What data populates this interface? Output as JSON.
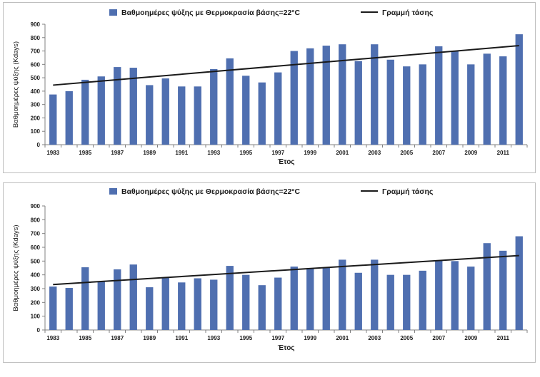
{
  "chart_data": [
    {
      "type": "bar+line",
      "legend": {
        "bar_label": "Βαθμοημέρες ψύξης με Θερμοκρασία βάσης=22°C",
        "line_label": "Γραμμή τάσης",
        "placement": "top"
      },
      "xlabel": "Έτος",
      "ylabel": "Βαθμοημέρες ψύξης (Kdays)",
      "ylim": [
        0,
        900
      ],
      "ytick_step": 100,
      "grid": false,
      "colors": {
        "bar": "#4f6fb0",
        "line": "#1a1a1a"
      },
      "categories": [
        1983,
        1984,
        1985,
        1986,
        1987,
        1988,
        1989,
        1990,
        1991,
        1992,
        1993,
        1994,
        1995,
        1996,
        1997,
        1998,
        1999,
        2000,
        2001,
        2002,
        2003,
        2004,
        2005,
        2006,
        2007,
        2008,
        2009,
        2010,
        2011,
        2012
      ],
      "tick_labels": [
        "1983",
        "1985",
        "1987",
        "1989",
        "1991",
        "1993",
        "1995",
        "1997",
        "1999",
        "2001",
        "2003",
        "2005",
        "2007",
        "2009",
        "2011"
      ],
      "values": [
        375,
        400,
        485,
        510,
        580,
        575,
        445,
        495,
        435,
        435,
        565,
        645,
        515,
        465,
        540,
        700,
        720,
        740,
        750,
        625,
        750,
        635,
        585,
        600,
        735,
        700,
        600,
        680,
        660,
        825
      ],
      "trend": {
        "start": 445,
        "end": 740
      }
    },
    {
      "type": "bar+line",
      "legend": {
        "bar_label": "Βαθμοημέρες ψύξης με Θερμοκρασία βάσης=22°C",
        "line_label": "Γραμμή τάσης",
        "placement": "top"
      },
      "xlabel": "Έτος",
      "ylabel": "Βαθμοημέρες ψύξης (Kdays)",
      "ylim": [
        0,
        900
      ],
      "ytick_step": 100,
      "grid": false,
      "colors": {
        "bar": "#4f6fb0",
        "line": "#1a1a1a"
      },
      "categories": [
        1983,
        1984,
        1985,
        1986,
        1987,
        1988,
        1989,
        1990,
        1991,
        1992,
        1993,
        1994,
        1995,
        1996,
        1997,
        1998,
        1999,
        2000,
        2001,
        2002,
        2003,
        2004,
        2005,
        2006,
        2007,
        2008,
        2009,
        2010,
        2011,
        2012
      ],
      "tick_labels": [
        "1983",
        "1985",
        "1987",
        "1989",
        "1991",
        "1993",
        "1995",
        "1997",
        "1999",
        "2001",
        "2003",
        "2005",
        "2007",
        "2009",
        "2011"
      ],
      "values": [
        315,
        305,
        455,
        350,
        440,
        475,
        310,
        380,
        345,
        375,
        365,
        465,
        400,
        325,
        380,
        460,
        445,
        455,
        510,
        415,
        510,
        400,
        400,
        430,
        505,
        500,
        460,
        630,
        575,
        680
      ],
      "trend": {
        "start": 330,
        "end": 540
      }
    }
  ]
}
